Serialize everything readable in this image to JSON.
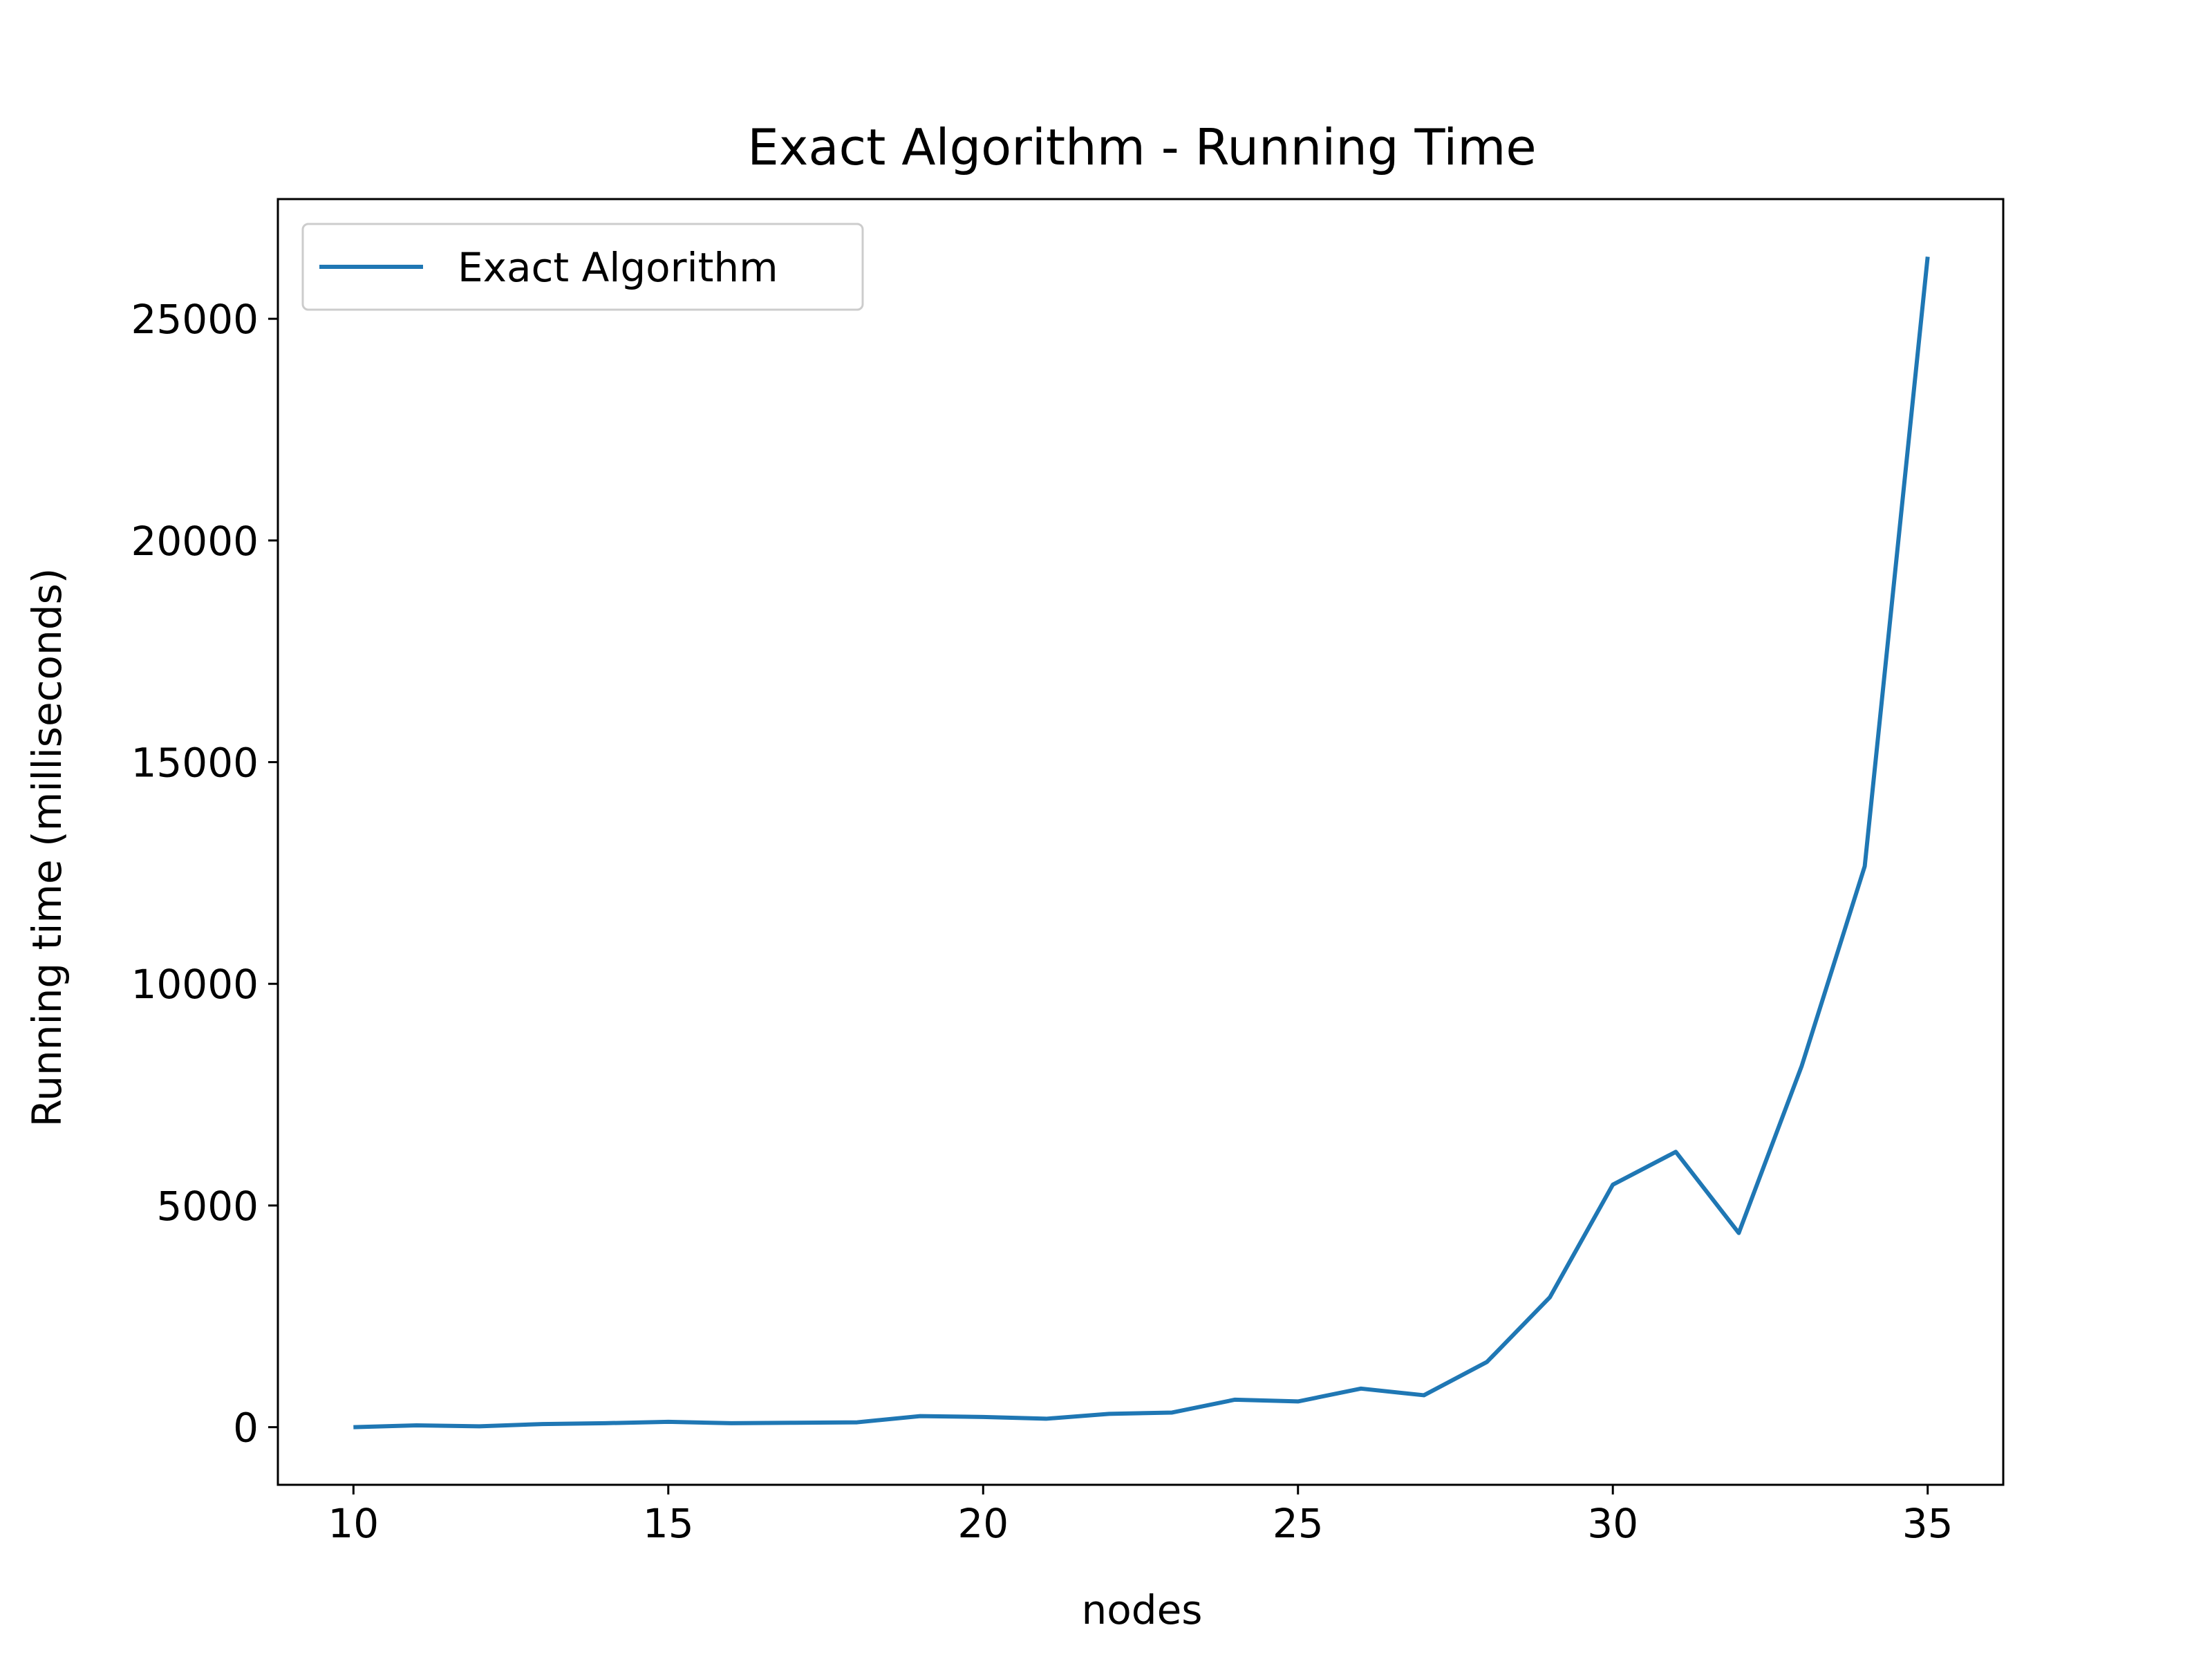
{
  "chart_data": {
    "type": "line",
    "title": "Exact Algorithm - Running Time",
    "xlabel": "nodes",
    "ylabel": "Running time (milliseconds)",
    "xlim": [
      8.8,
      36.2
    ],
    "ylim": [
      -1300,
      27700
    ],
    "xticks": [
      10,
      15,
      20,
      25,
      30,
      35
    ],
    "yticks": [
      0,
      5000,
      10000,
      15000,
      20000,
      25000
    ],
    "legend_position": "upper-left",
    "grid": false,
    "series": [
      {
        "name": "Exact Algorithm",
        "color": "#1f77b4",
        "x": [
          10,
          11,
          12,
          13,
          14,
          15,
          16,
          17,
          18,
          19,
          20,
          21,
          22,
          23,
          24,
          25,
          26,
          27,
          28,
          29,
          30,
          31,
          32,
          33,
          34,
          35
        ],
        "y": [
          0,
          40,
          20,
          70,
          90,
          120,
          90,
          100,
          110,
          250,
          230,
          190,
          300,
          330,
          620,
          580,
          870,
          720,
          1470,
          2930,
          5470,
          6210,
          4380,
          8150,
          12650,
          26400
        ]
      }
    ]
  }
}
